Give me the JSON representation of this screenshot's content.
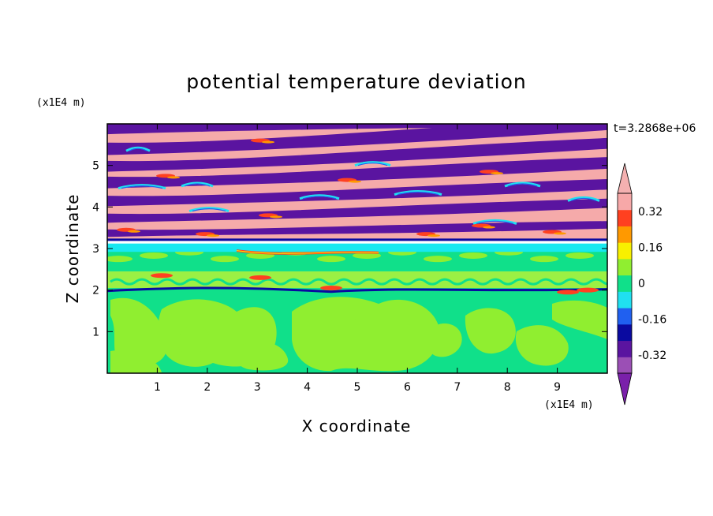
{
  "chart_data": {
    "type": "heatmap",
    "title": "potential temperature deviation",
    "xlabel": "X coordinate",
    "ylabel": "Z coordinate",
    "x_unit": "(x1E4 m)",
    "y_unit": "(x1E4 m)",
    "time_label": "t=3.2868e+06",
    "xlim": [
      0,
      10
    ],
    "ylim": [
      0,
      6
    ],
    "x_ticks": [
      1,
      2,
      3,
      4,
      5,
      6,
      7,
      8,
      9
    ],
    "y_ticks": [
      1,
      2,
      3,
      4,
      5
    ],
    "colorbar": {
      "labels": [
        "0.32",
        "0.16",
        "0",
        "-0.16",
        "-0.32"
      ],
      "label_values": [
        0.32,
        0.16,
        0,
        -0.16,
        -0.32
      ],
      "levels": [
        -0.4,
        -0.32,
        -0.24,
        -0.16,
        -0.08,
        0,
        0.08,
        0.16,
        0.24,
        0.32,
        0.4
      ],
      "colors": [
        "#9b4fb5",
        "#5a14a0",
        "#0a0aa0",
        "#2060f0",
        "#20e0f0",
        "#10e08a",
        "#90ee30",
        "#f8f000",
        "#ff9900",
        "#ff4020",
        "#f7a8a8"
      ],
      "under_color": "#7a20aa",
      "over_color": "#f4b0b0"
    },
    "regions": {
      "lower_background": "#10e08a",
      "lower_eddies": "#90ee30",
      "band_positive": "#f5aaaa",
      "band_negative": "#5a14a0",
      "layer_3": "#18e8f0",
      "layer_2": "#0a0aa0"
    }
  }
}
